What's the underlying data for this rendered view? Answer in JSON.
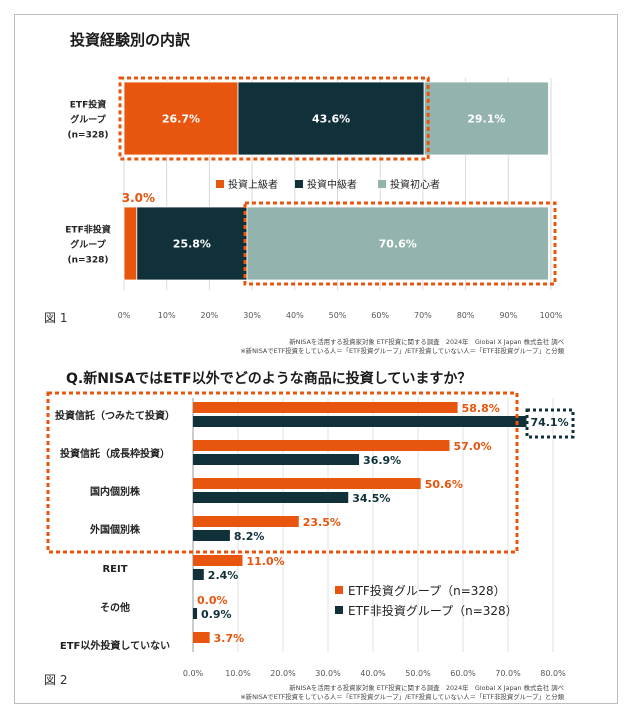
{
  "chart_data": [
    {
      "type": "bar",
      "orientation": "horizontal-stacked",
      "title": "投資経験別の内訳",
      "categories": [
        [
          "ETF投資",
          "グループ",
          "(n=328)"
        ],
        [
          "ETF非投資",
          "グループ",
          "(n=328)"
        ]
      ],
      "series": [
        {
          "name": "投資上級者",
          "values": [
            26.7,
            3.0
          ],
          "color": "#E8550E"
        },
        {
          "name": "投資中級者",
          "values": [
            43.6,
            25.8
          ],
          "color": "#10303A"
        },
        {
          "name": "投資初心者",
          "values": [
            29.1,
            70.6
          ],
          "color": "#93B3AE"
        }
      ],
      "data_labels": [
        [
          "26.7%",
          "43.6%",
          "29.1%"
        ],
        [
          "3.0%",
          "25.8%",
          "70.6%"
        ]
      ],
      "ticks": [
        "0%",
        "10%",
        "20%",
        "30%",
        "40%",
        "50%",
        "60%",
        "70%",
        "80%",
        "90%",
        "100%"
      ],
      "xlim": [
        0,
        100
      ],
      "figure_label": "図 1",
      "source": [
        "新NISAを活用する投資家対象 ETF投資に関する調査　2024年　Global X Japan 株式会社 調べ",
        "※新NISAでETF投資をしている人＝「ETF投資グループ」/ETF投資していない人＝「ETF非投資グループ」と分類"
      ]
    },
    {
      "type": "bar",
      "orientation": "horizontal-grouped",
      "title": "Q.新NISAではETF以外でどのような商品に投資していますか？",
      "categories": [
        "投資信託（つみたて投資）",
        "投資信託（成長枠投資）",
        "国内個別株",
        "外国個別株",
        "REIT",
        "その他",
        "ETF以外投資していない"
      ],
      "series": [
        {
          "name": "ETF投資グループ（n=328）",
          "values": [
            58.8,
            57.0,
            50.6,
            23.5,
            11.0,
            0.0,
            3.7
          ],
          "color": "#E8550E"
        },
        {
          "name": "ETF非投資グループ（n=328）",
          "values": [
            74.1,
            36.9,
            34.5,
            8.2,
            2.4,
            0.9,
            null
          ],
          "color": "#10303A"
        }
      ],
      "data_labels": [
        [
          "58.8%",
          "57.0%",
          "50.6%",
          "23.5%",
          "11.0%",
          "0.0%",
          "3.7%"
        ],
        [
          "74.1%",
          "36.9%",
          "34.5%",
          "8.2%",
          "2.4%",
          "0.9%",
          ""
        ]
      ],
      "ticks": [
        "0.0%",
        "10.0%",
        "20.0%",
        "30.0%",
        "40.0%",
        "50.0%",
        "60.0%",
        "70.0%",
        "80.0%"
      ],
      "xlim": [
        0,
        80
      ],
      "figure_label": "図 2",
      "source": [
        "新NISAを活用する投資家対象 ETF投資に関する調査　2024年　Global X Japan 株式会社 調べ",
        "※新NISAでETF投資をしている人＝「ETF投資グループ」/ETF投資していない人＝「ETF非投資グループ」と分類"
      ]
    }
  ]
}
